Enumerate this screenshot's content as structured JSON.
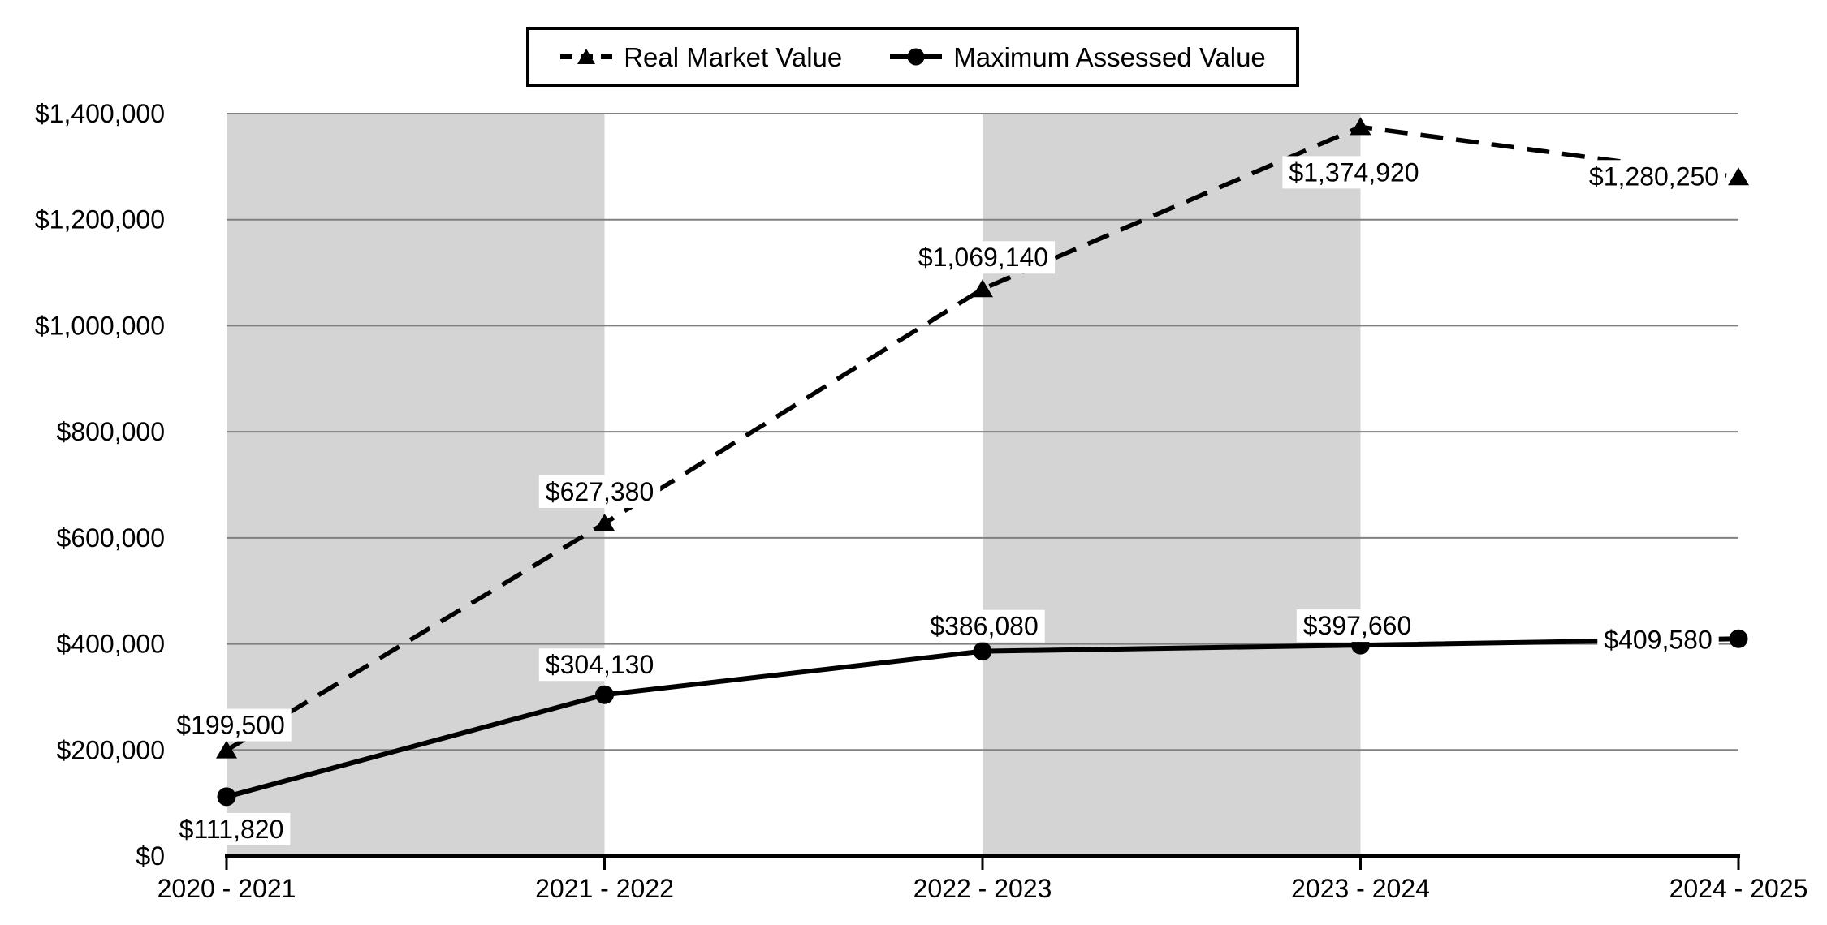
{
  "chart_data": {
    "type": "line",
    "title": "",
    "xlabel": "",
    "ylabel": "",
    "categories": [
      "2020 - 2021",
      "2021 - 2022",
      "2022 - 2023",
      "2023 - 2024",
      "2024 - 2025"
    ],
    "series": [
      {
        "name": "Real Market Value",
        "line_style": "dashed",
        "marker": "triangle",
        "color": "#000000",
        "values": [
          199500,
          627380,
          1069140,
          1374920,
          1280250
        ],
        "labels": [
          "$199,500",
          "$627,380",
          "$1,069,140",
          "$1,374,920",
          "$1,280,250"
        ],
        "label_offsets": [
          {
            "dx": 5,
            "dy": -31
          },
          {
            "dx": -6,
            "dy": -39
          },
          {
            "dx": 1,
            "dy": -39
          },
          {
            "dx": -8,
            "dy": 56
          },
          {
            "dx": -104,
            "dy": -1
          }
        ]
      },
      {
        "name": "Maximum Assessed Value",
        "line_style": "solid",
        "marker": "circle",
        "color": "#000000",
        "values": [
          111820,
          304130,
          386080,
          397660,
          409580
        ],
        "labels": [
          "$111,820",
          "$304,130",
          "$386,080",
          "$397,660",
          "$409,580"
        ],
        "label_offsets": [
          {
            "dx": 6,
            "dy": 40
          },
          {
            "dx": -6,
            "dy": -37
          },
          {
            "dx": 2,
            "dy": -31
          },
          {
            "dx": -4,
            "dy": -24
          },
          {
            "dx": -99,
            "dy": 1
          }
        ]
      }
    ],
    "y_axis": {
      "min": 0,
      "max": 1400000,
      "step": 200000,
      "tick_labels": [
        "$0",
        "$200,000",
        "$400,000",
        "$600,000",
        "$800,000",
        "$1,000,000",
        "$1,200,000",
        "$1,400,000"
      ]
    },
    "layout": {
      "legend_position": "top-center",
      "grid": true,
      "gridline_color": "#808080",
      "band_color": "#D4D4D4",
      "background_color": "#FFFFFF",
      "axis_color": "#000000",
      "shaded_band_pairs": [
        [
          0,
          1
        ],
        [
          2,
          3
        ]
      ]
    }
  },
  "legend": {
    "items": [
      {
        "label": "Real Market Value"
      },
      {
        "label": "Maximum Assessed Value"
      }
    ]
  }
}
